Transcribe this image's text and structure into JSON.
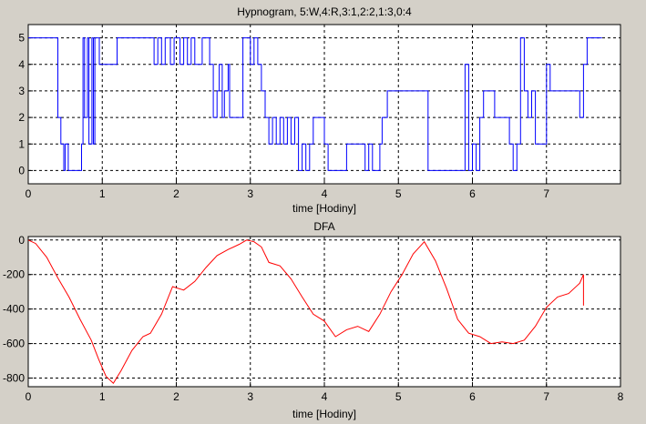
{
  "chart_data": [
    {
      "type": "line",
      "title": "Hypnogram, 5:W,4:R,3:1,2:2,1:3,0:4",
      "xlabel": "time [Hodiny]",
      "ylabel": "",
      "xlim": [
        0,
        8
      ],
      "ylim": [
        -0.5,
        5.5
      ],
      "xticks": [
        0,
        1,
        2,
        3,
        4,
        5,
        6,
        7
      ],
      "yticks": [
        0,
        1,
        2,
        3,
        4,
        5
      ],
      "grid": true,
      "line_style": "step",
      "series": [
        {
          "color": "#0000ff",
          "x": [
            0,
            0.35,
            0.4,
            0.44,
            0.48,
            0.5,
            0.54,
            0.57,
            0.72,
            0.74,
            0.76,
            0.8,
            0.82,
            0.86,
            0.88,
            0.9,
            0.93,
            0.96,
            1.2,
            1.22,
            1.65,
            1.7,
            1.75,
            1.8,
            1.85,
            1.92,
            1.97,
            2.05,
            2.1,
            2.15,
            2.2,
            2.25,
            2.35,
            2.45,
            2.5,
            2.55,
            2.58,
            2.62,
            2.65,
            2.7,
            2.72,
            2.75,
            2.9,
            3.0,
            3.05,
            3.1,
            3.15,
            3.2,
            3.25,
            3.3,
            3.35,
            3.4,
            3.45,
            3.5,
            3.55,
            3.6,
            3.65,
            3.7,
            3.75,
            3.8,
            3.85,
            4.0,
            4.05,
            4.1,
            4.15,
            4.2,
            4.25,
            4.3,
            4.55,
            4.6,
            4.65,
            4.75,
            4.78,
            4.85,
            5.35,
            5.4,
            5.45,
            5.5,
            5.9,
            5.95,
            6.0,
            6.05,
            6.1,
            6.15,
            6.2,
            6.3,
            6.5,
            6.55,
            6.6,
            6.65,
            6.7,
            6.75,
            6.8,
            6.85,
            6.9,
            7.0,
            7.05,
            7.3,
            7.35,
            7.45,
            7.5,
            7.55,
            7.6,
            7.75
          ],
          "y": [
            5,
            5,
            2,
            1,
            0,
            1,
            0,
            0,
            1,
            5,
            2,
            5,
            1,
            5,
            1,
            5,
            5,
            4,
            5,
            5,
            5,
            4,
            5,
            4,
            5,
            4,
            5,
            4,
            5,
            4,
            5,
            4,
            5,
            4,
            2,
            3,
            4,
            2,
            3,
            4,
            2,
            2,
            5,
            4,
            5,
            4,
            3,
            2,
            1,
            2,
            1,
            2,
            1,
            2,
            1,
            2,
            0,
            1,
            0,
            1,
            2,
            1,
            0,
            0,
            0,
            0,
            0,
            1,
            0,
            1,
            0,
            1,
            2,
            3,
            3,
            0,
            0,
            0,
            4,
            0,
            1,
            0,
            2,
            3,
            3,
            2,
            1,
            0,
            1,
            5,
            3,
            2,
            3,
            1,
            1,
            4,
            3,
            3,
            3,
            2,
            4,
            5,
            5,
            5
          ]
        }
      ]
    },
    {
      "type": "line",
      "title": "DFA",
      "xlabel": "time [Hodiny]",
      "ylabel": "",
      "xlim": [
        0,
        8
      ],
      "ylim": [
        -850,
        20
      ],
      "xticks": [
        0,
        1,
        2,
        3,
        4,
        5,
        6,
        7,
        8
      ],
      "yticks": [
        0,
        -200,
        -400,
        -600,
        -800
      ],
      "grid": true,
      "series": [
        {
          "color": "#ff0000",
          "x": [
            0,
            0.1,
            0.25,
            0.4,
            0.55,
            0.7,
            0.85,
            0.95,
            1.05,
            1.15,
            1.25,
            1.4,
            1.55,
            1.65,
            1.8,
            1.95,
            2.1,
            2.25,
            2.4,
            2.55,
            2.7,
            2.85,
            2.95,
            3.05,
            3.15,
            3.25,
            3.4,
            3.55,
            3.7,
            3.85,
            4.0,
            4.15,
            4.3,
            4.45,
            4.6,
            4.75,
            4.9,
            5.05,
            5.2,
            5.35,
            5.5,
            5.65,
            5.8,
            5.95,
            6.1,
            6.25,
            6.4,
            6.55,
            6.7,
            6.85,
            7.0,
            7.15,
            7.3,
            7.45,
            7.5,
            7.5
          ],
          "y": [
            0,
            -20,
            -100,
            -220,
            -330,
            -460,
            -580,
            -690,
            -790,
            -830,
            -760,
            -640,
            -560,
            -540,
            -430,
            -270,
            -290,
            -240,
            -160,
            -90,
            -55,
            -25,
            0,
            -10,
            -40,
            -130,
            -150,
            -225,
            -330,
            -430,
            -470,
            -560,
            -520,
            -500,
            -530,
            -430,
            -300,
            -200,
            -80,
            -10,
            -120,
            -280,
            -460,
            -540,
            -560,
            -600,
            -590,
            -600,
            -580,
            -500,
            -390,
            -330,
            -310,
            -250,
            -200,
            -380
          ]
        }
      ]
    }
  ]
}
